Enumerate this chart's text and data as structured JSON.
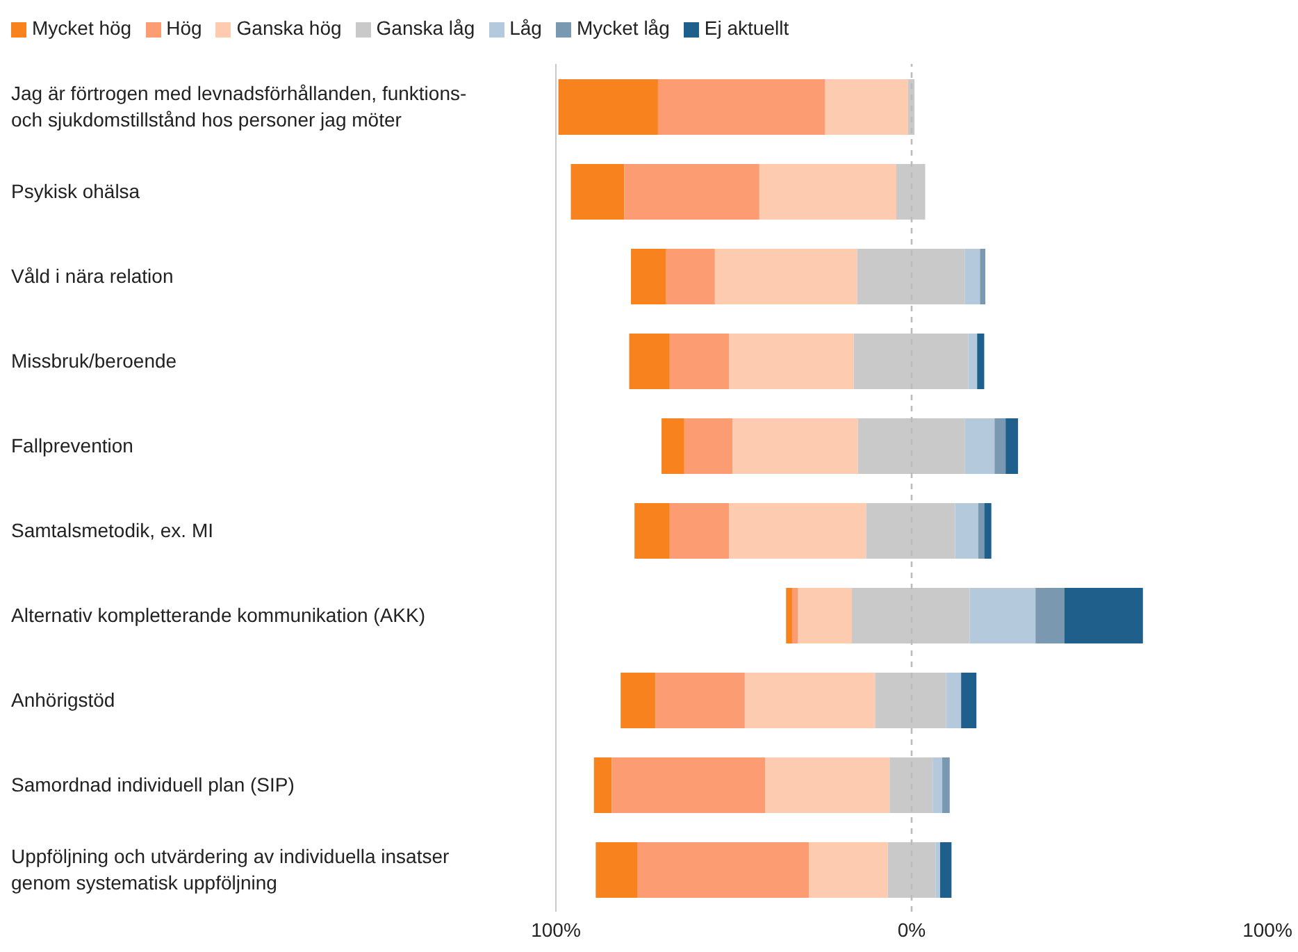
{
  "chart_data": {
    "type": "bar",
    "orientation": "horizontal",
    "categories": [
      "Jag är förtrogen med levnadsförhållanden, funktions- och sjukdomstillstånd hos personer jag möter",
      "Psykisk ohälsa",
      "Våld i nära relation",
      "Missbruk/beroende",
      "Fallprevention",
      "Samtalsmetodik, ex. MI",
      "Alternativ kompletterande kommunikation (AKK)",
      "Anhörigstöd",
      "Samordnad individuell plan (SIP)",
      "Uppföljning och utvärdering av individuella insatser genom systematisk uppföljning"
    ],
    "series": [
      {
        "name": "Mycket hög",
        "color": "#f7821e",
        "values": [
          28.0,
          15.0,
          9.9,
          11.4,
          6.4,
          9.9,
          1.7,
          9.8,
          5.0,
          11.8
        ],
        "base": [
          -99.3,
          -95.8,
          -78.9,
          -79.4,
          -70.3,
          -77.9,
          -35.3,
          -81.8,
          -89.3,
          -88.8
        ]
      },
      {
        "name": "Hög",
        "color": "#fc9c72",
        "values": [
          47.0,
          38.0,
          13.7,
          16.7,
          13.6,
          16.7,
          1.7,
          25.1,
          43.1,
          48.2
        ],
        "base": [
          -71.3,
          -80.8,
          -69.0,
          -68.0,
          -63.9,
          -68.0,
          -33.6,
          -72.0,
          -84.3,
          -77.0
        ]
      },
      {
        "name": "Ganska hög",
        "color": "#fdcbb0",
        "values": [
          23.3,
          38.5,
          40.0,
          35.0,
          35.2,
          38.5,
          15.1,
          36.6,
          35.0,
          22.1
        ],
        "base": [
          -24.3,
          -42.8,
          -55.3,
          -51.3,
          -50.3,
          -51.3,
          -31.9,
          -46.9,
          -41.2,
          -28.8
        ]
      },
      {
        "name": "Ganska låg",
        "color": "#c9c9c9",
        "values": [
          1.8,
          8.1,
          30.2,
          32.2,
          30.1,
          25.0,
          33.1,
          20.0,
          12.1,
          13.4
        ],
        "base": [
          -1.0,
          -4.3,
          -15.3,
          -16.3,
          -15.1,
          -12.8,
          -16.8,
          -10.3,
          -6.2,
          -6.7
        ]
      },
      {
        "name": "Låg",
        "color": "#b5c9dd",
        "values": [
          null,
          null,
          4.3,
          2.5,
          8.3,
          6.5,
          18.5,
          4.2,
          2.7,
          1.3
        ],
        "base": [
          null,
          null,
          14.9,
          15.9,
          15.0,
          12.2,
          16.3,
          9.7,
          5.9,
          6.7
        ]
      },
      {
        "name": "Mycket låg",
        "color": "#7b98b1",
        "values": [
          null,
          null,
          1.5,
          null,
          3.1,
          1.7,
          8.1,
          null,
          2.1,
          null
        ],
        "base": [
          null,
          null,
          19.2,
          null,
          23.3,
          18.7,
          34.8,
          null,
          8.6,
          null
        ]
      },
      {
        "name": "Ej aktuellt",
        "color": "#1f5f8b",
        "values": [
          null,
          null,
          null,
          2.0,
          3.5,
          2.0,
          22.1,
          4.3,
          null,
          3.2
        ],
        "base": [
          null,
          null,
          null,
          18.4,
          26.4,
          20.4,
          42.9,
          13.9,
          null,
          8.0
        ]
      }
    ],
    "xlim": [
      -100,
      100
    ],
    "xticks": [
      {
        "value": -100,
        "label": "100%"
      },
      {
        "value": 0,
        "label": "0%"
      },
      {
        "value": 100,
        "label": "100%"
      }
    ],
    "ref_lines": [
      {
        "axis": "x",
        "value": 0,
        "line_style": "dashed",
        "color": "#bbbbbb"
      }
    ],
    "legend": "top left",
    "grid": false
  }
}
